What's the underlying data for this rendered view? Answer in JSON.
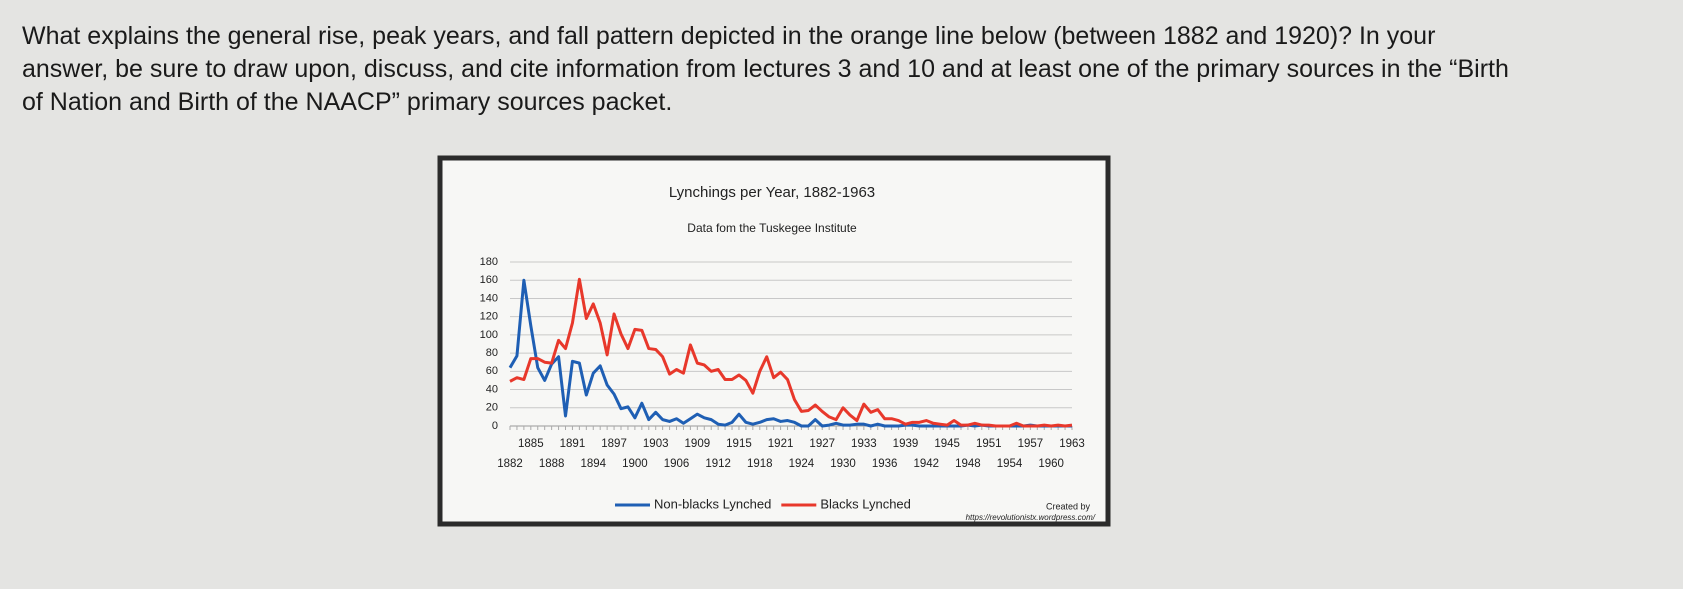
{
  "question": "What explains the general rise, peak years, and fall pattern depicted in the orange line below (between 1882 and 1920)? In your answer, be sure to draw upon, discuss, and cite information from lectures 3 and 10 and at least one of the primary sources in the “Birth of Nation and Birth of the NAACP” primary sources packet.",
  "chart_data": {
    "type": "line",
    "title": "Lynchings per Year, 1882-1963",
    "subtitle": "Data fom the Tuskegee Institute",
    "categories": [
      "1882",
      null,
      null,
      "1885",
      null,
      null,
      "1888",
      null,
      null,
      "1891",
      null,
      null,
      "1894",
      null,
      null,
      "1897",
      null,
      null,
      "1900",
      null,
      null,
      "1903",
      null,
      null,
      "1906",
      null,
      null,
      "1909",
      null,
      null,
      "1912",
      null,
      null,
      "1915",
      null,
      null,
      "1918",
      null,
      null,
      "1921",
      null,
      null,
      "1924",
      null,
      null,
      "1927",
      null,
      null,
      "1930",
      null,
      null,
      "1933",
      null,
      null,
      "1936",
      null,
      null,
      "1939",
      null,
      null,
      "1942",
      null,
      null,
      "1945",
      null,
      null,
      "1948",
      null,
      null,
      "1951",
      null,
      null,
      "1954",
      null,
      null,
      "1957",
      null,
      null,
      "1960",
      null,
      null,
      "1963"
    ],
    "series": [
      {
        "name": "Non-blacks Lynched",
        "color": "#1f5fb4",
        "values": [
          64,
          77,
          160,
          110,
          64,
          50,
          68,
          76,
          11,
          71,
          69,
          34,
          58,
          66,
          45,
          35,
          19,
          21,
          9,
          25,
          7,
          15,
          7,
          5,
          8,
          3,
          8,
          13,
          9,
          7,
          2,
          1,
          4,
          13,
          4,
          2,
          4,
          7,
          8,
          5,
          6,
          4,
          0,
          0,
          7,
          0,
          1,
          3,
          1,
          1,
          2,
          2,
          0,
          2,
          0,
          0,
          0,
          1,
          1,
          0,
          0,
          0,
          0,
          0,
          0,
          0,
          1,
          0,
          1,
          0,
          0,
          0,
          0,
          0,
          0,
          1,
          0,
          0,
          0,
          0,
          0,
          0
        ]
      },
      {
        "name": "Blacks Lynched",
        "color": "#e8382b",
        "values": [
          49,
          53,
          51,
          74,
          74,
          70,
          69,
          94,
          85,
          113,
          161,
          118,
          134,
          113,
          78,
          123,
          101,
          85,
          106,
          105,
          85,
          84,
          76,
          57,
          62,
          58,
          89,
          69,
          67,
          60,
          62,
          51,
          51,
          56,
          50,
          36,
          60,
          76,
          53,
          59,
          51,
          29,
          16,
          17,
          23,
          16,
          10,
          7,
          20,
          12,
          6,
          24,
          15,
          18,
          8,
          8,
          6,
          2,
          4,
          4,
          6,
          3,
          2,
          1,
          6,
          1,
          1,
          3,
          1,
          1,
          0,
          0,
          0,
          3,
          0,
          0,
          0,
          1,
          0,
          1,
          0,
          1
        ]
      }
    ],
    "ylim": [
      0,
      180
    ],
    "yticks": [
      0,
      20,
      40,
      60,
      80,
      100,
      120,
      140,
      160,
      180
    ],
    "grid": true,
    "legend": "bottom",
    "credit": "Created by",
    "credit_url": "https://revolutionistx.wordpress.com/"
  }
}
